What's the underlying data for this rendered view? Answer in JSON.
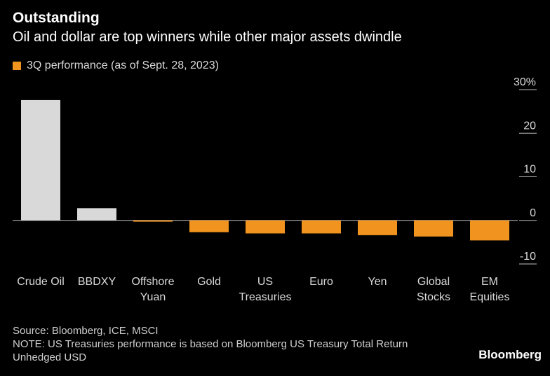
{
  "title": "Outstanding",
  "subtitle": "Oil and dollar are top winners while other major assets dwindle",
  "legend": {
    "label": "3Q performance (as of Sept. 28, 2023)",
    "color": "#f0931f"
  },
  "source": "Source: Bloomberg, ICE, MSCI",
  "note_line1": "NOTE: US Treasuries performance is based on Bloomberg US Treasury Total Return",
  "note_line2": "Unhedged USD",
  "brand": "Bloomberg",
  "colors": {
    "positive": "#d9d9d9",
    "negative": "#f0931f",
    "axis": "#bfbfbf"
  },
  "chart_data": {
    "type": "bar",
    "categories": [
      [
        "Crude Oil"
      ],
      [
        "BBDXY"
      ],
      [
        "Offshore",
        "Yuan"
      ],
      [
        "Gold"
      ],
      [
        "US",
        "Treasuries"
      ],
      [
        "Euro"
      ],
      [
        "Yen"
      ],
      [
        "Global",
        "Stocks"
      ],
      [
        "EM",
        "Equities"
      ]
    ],
    "values": [
      27.6,
      2.8,
      -0.3,
      -2.7,
      -3.0,
      -3.0,
      -3.4,
      -3.7,
      -4.6
    ],
    "ylim": [
      -10,
      30
    ],
    "yticks": [
      {
        "value": 30,
        "label": "30%"
      },
      {
        "value": 20,
        "label": "20"
      },
      {
        "value": 10,
        "label": "10"
      },
      {
        "value": 0,
        "label": "0"
      },
      {
        "value": -10,
        "label": "-10"
      }
    ],
    "y_axis_side": "right",
    "grid": false
  }
}
